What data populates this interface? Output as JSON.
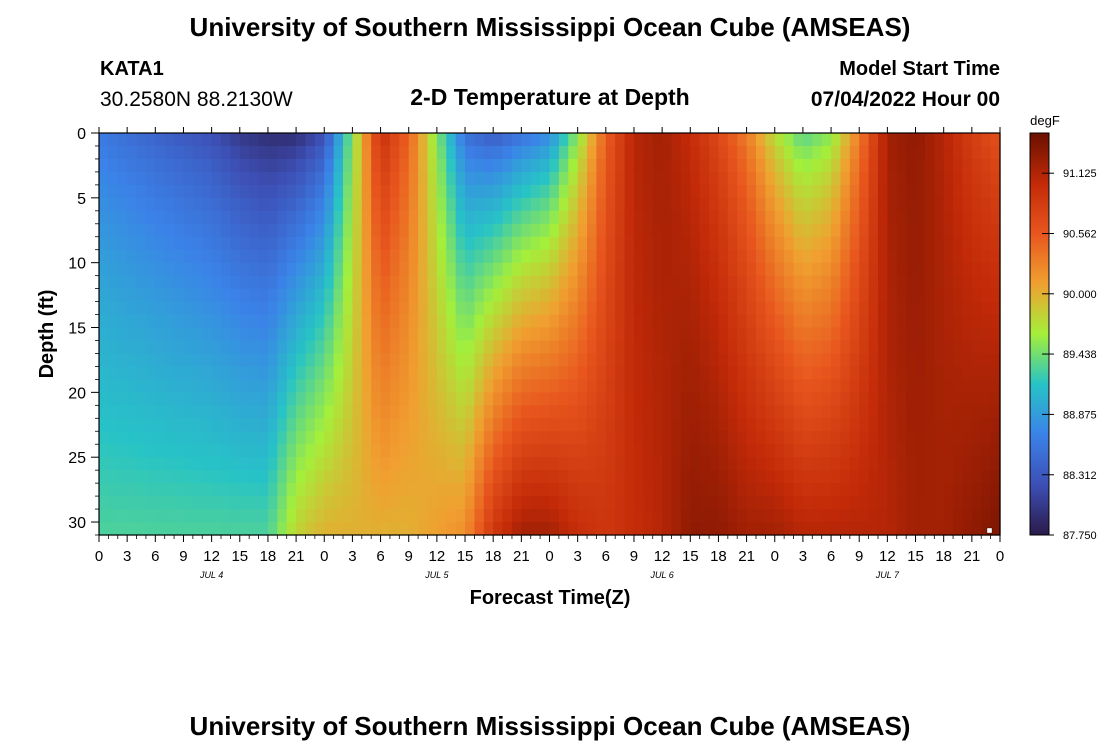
{
  "header": {
    "title": "University of Southern Mississippi Ocean Cube (AMSEAS)",
    "station": "KATA1",
    "coords": "30.2580N  88.2130W",
    "subtitle": "2-D Temperature at Depth",
    "model_start_label": "Model Start Time",
    "model_start_value": "07/04/2022 Hour 00"
  },
  "footer": {
    "title": "University of Southern Mississippi Ocean Cube (AMSEAS)"
  },
  "chart_data": {
    "type": "heatmap",
    "title": "2-D Temperature at Depth",
    "xlabel": "Forecast Time(Z)",
    "ylabel": "Depth (ft)",
    "xlim": [
      0,
      96
    ],
    "ylim": [
      0,
      31
    ],
    "y_inverted": true,
    "x_tick_labels": [
      "0",
      "3",
      "6",
      "9",
      "12",
      "15",
      "18",
      "21",
      "0",
      "3",
      "6",
      "9",
      "12",
      "15",
      "18",
      "21",
      "0",
      "3",
      "6",
      "9",
      "12",
      "15",
      "18",
      "21",
      "0",
      "3",
      "6",
      "9",
      "12",
      "15",
      "18",
      "21",
      "0"
    ],
    "y_tick_labels": [
      "0",
      "5",
      "10",
      "15",
      "20",
      "25",
      "30"
    ],
    "date_labels": [
      "JUL 4",
      "JUL 5",
      "JUL 6",
      "JUL 7"
    ],
    "colorbar": {
      "unit": "degF",
      "min": 87.75,
      "max": 91.5,
      "tick_labels": [
        "91.125",
        "90.562",
        "90.000",
        "89.438",
        "88.875",
        "88.312",
        "87.750"
      ]
    },
    "surface_temp_by_hour": [
      88.6,
      88.5,
      88.4,
      88.3,
      88.2,
      88.0,
      87.9,
      87.9,
      88.2,
      89.5,
      91.0,
      90.5,
      89.5,
      88.5,
      88.3,
      88.5,
      88.7,
      89.5,
      90.5,
      91.1,
      91.2,
      91.0,
      90.7,
      90.3,
      89.7,
      89.3,
      89.5,
      90.3,
      91.2,
      91.3,
      91.1,
      90.8,
      90.6
    ],
    "bottom_temp_by_hour": [
      89.3,
      89.3,
      89.3,
      89.3,
      89.3,
      89.3,
      89.3,
      89.8,
      90.0,
      90.0,
      90.0,
      90.0,
      90.1,
      90.2,
      90.9,
      91.2,
      91.2,
      91.0,
      90.9,
      91.0,
      91.1,
      91.3,
      91.3,
      91.2,
      91.2,
      91.1,
      91.1,
      91.1,
      91.1,
      91.2,
      91.2,
      91.3,
      91.4
    ],
    "color_scale": [
      "#2a1a4a",
      "#3d4fb5",
      "#3b82e8",
      "#27c3c6",
      "#a4ef3a",
      "#f0a030",
      "#e8561e",
      "#c22a08",
      "#6a1000"
    ]
  }
}
